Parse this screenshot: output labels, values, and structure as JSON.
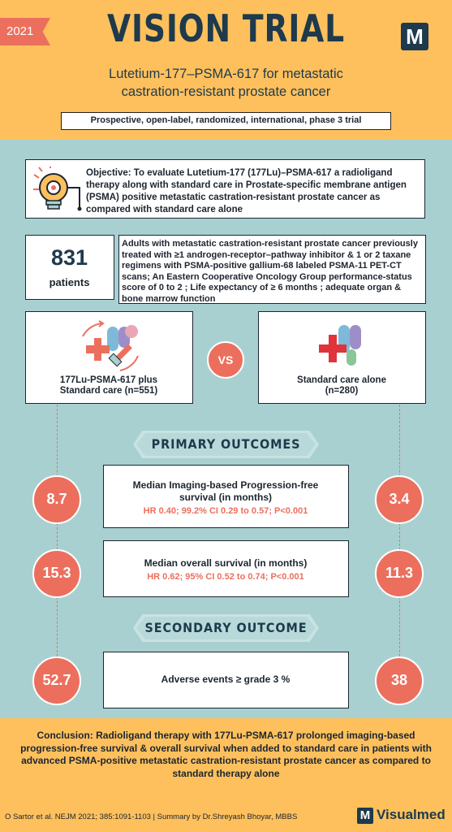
{
  "header": {
    "year": "2021",
    "title": "VISION TRIAL",
    "logo_letter": "M",
    "subtitle_line1": "Lutetium-177–PSMA-617 for metastatic",
    "subtitle_line2": "castration-resistant prostate cancer",
    "design": "Prospective, open-label, randomized, international, phase 3 trial"
  },
  "objective": {
    "icon": "lightbulb-gear-icon",
    "text": "Objective: To evaluate Lutetium-177 (177Lu)–PSMA-617 a radioligand therapy along with standard care in Prostate-specific membrane antigen (PSMA) positive metastatic castration-resistant prostate cancer as compared with standard care alone"
  },
  "population": {
    "count": "831",
    "count_label": "patients",
    "criteria": "Adults with metastatic castration-resistant prostate cancer previously treated with ≥1 androgen-receptor–pathway inhibitor & 1 or 2 taxane regimens with PSMA-positive gallium-68 labeled PSMA-11 PET-CT scans; An Eastern Cooperative Oncology Group performance-status score of 0 to 2 ; Life expectancy of ≥ 6 months ; adequate organ & bone marrow function"
  },
  "arms": {
    "a_line1": "177Lu-PSMA-617 plus",
    "a_line2": "Standard care (n=551)",
    "a_icon": "medication-syringe-icon",
    "vs": "VS",
    "b_line1": "Standard care alone",
    "b_line2": "(n=280)",
    "b_icon": "medication-icon"
  },
  "primary": {
    "heading": "PRIMARY OUTCOMES",
    "pfs_title_1": "Median Imaging-based Progression-free",
    "pfs_title_2": "survival (in months)",
    "pfs_stats": "HR 0.40; 99.2% CI 0.29 to 0.57; P<0.001",
    "pfs_a": "8.7",
    "pfs_b": "3.4",
    "os_title": "Median overall survival (in months)",
    "os_stats": "HR 0.62; 95% CI 0.52 to 0.74; P<0.001",
    "os_a": "15.3",
    "os_b": "11.3"
  },
  "secondary": {
    "heading": "SECONDARY OUTCOME",
    "ae_title": "Adverse events ≥ grade 3 %",
    "ae_a": "52.7",
    "ae_b": "38"
  },
  "conclusion": "Conclusion: Radioligand therapy with 177Lu-PSMA-617 prolonged imaging-based progression-free survival & overall survival when added to standard care in patients with advanced PSMA-positive metastatic castration-resistant prostate cancer as compared to standard therapy alone",
  "footer": {
    "citation": "O Sartor et al. NEJM 2021; 385:1091-1103 | Summary by Dr.Shreyash Bhoyar, MBBS",
    "brand_letter": "M",
    "brand": "Visualmed"
  },
  "colors": {
    "header_bg": "#fdc05d",
    "panel_bg": "#a9d0d1",
    "accent": "#ec6f5e",
    "navy": "#1e3a4c"
  }
}
